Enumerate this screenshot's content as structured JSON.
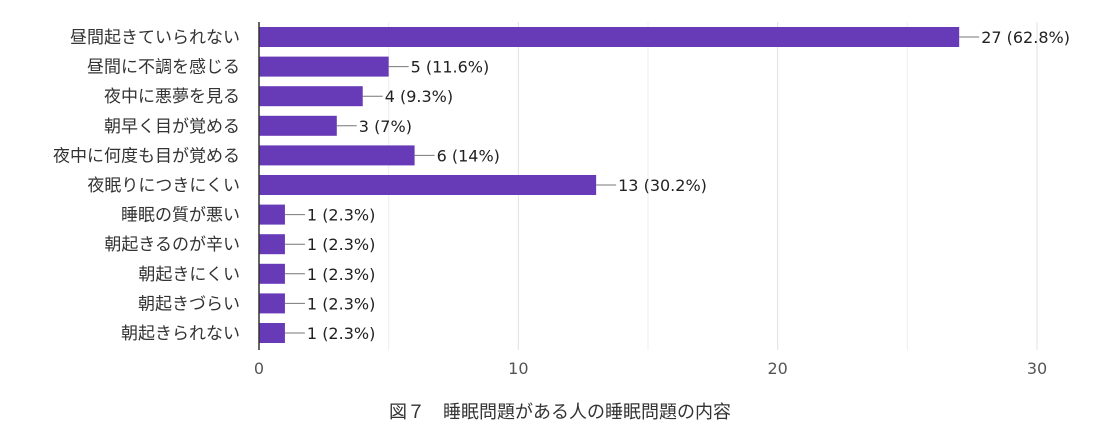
{
  "chart_data": {
    "type": "bar",
    "orientation": "horizontal",
    "categories": [
      "昼間起きていられない",
      "昼間に不調を感じる",
      "夜中に悪夢を見る",
      "朝早く目が覚める",
      "夜中に何度も目が覚める",
      "夜眠りにつきにくい",
      "睡眠の質が悪い",
      "朝起きるのが辛い",
      "朝起きにくい",
      "朝起きづらい",
      "朝起きられない"
    ],
    "values": [
      27,
      5,
      4,
      3,
      6,
      13,
      1,
      1,
      1,
      1,
      1
    ],
    "data_labels": [
      "27 (62.8%)",
      "5 (11.6%)",
      "4 (9.3%)",
      "3 (7%)",
      "6 (14%)",
      "13 (30.2%)",
      "1 (2.3%)",
      "1 (2.3%)",
      "1 (2.3%)",
      "1 (2.3%)",
      "1 (2.3%)"
    ],
    "xlim": [
      0,
      30
    ],
    "xticks": [
      "0",
      "10",
      "20",
      "30"
    ],
    "grid": true,
    "bar_color": "#673ab7",
    "title": "",
    "xlabel": "",
    "ylabel": ""
  },
  "caption": "図７　睡眠問題がある人の睡眠問題の内容"
}
